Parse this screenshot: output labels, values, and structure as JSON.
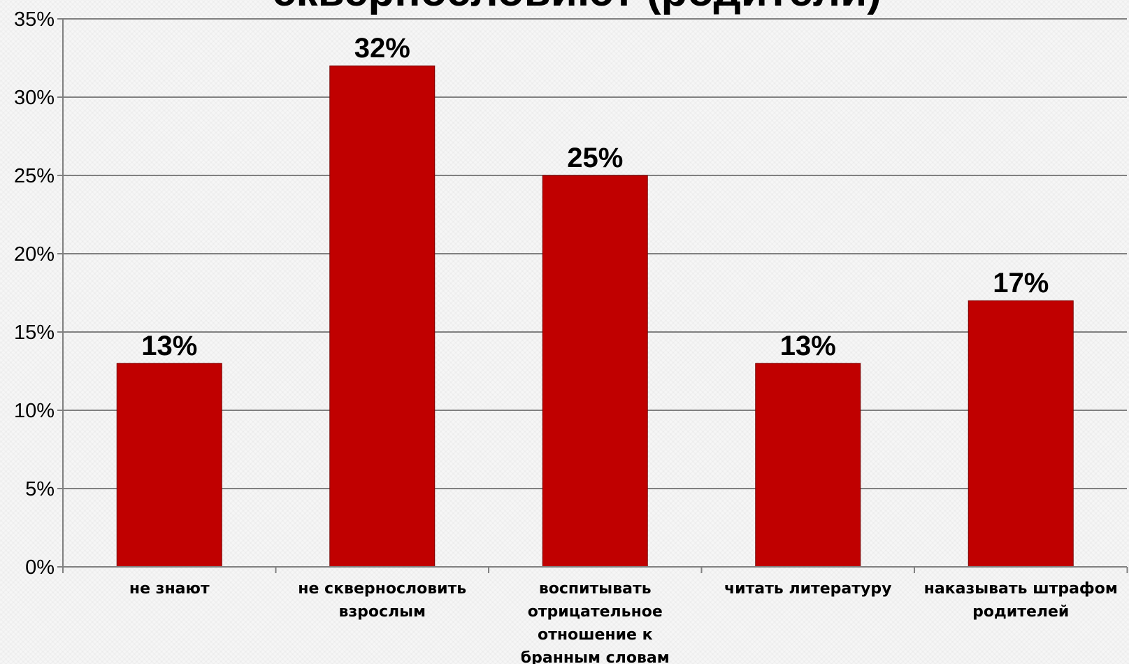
{
  "chart_data": {
    "type": "bar",
    "title": "сквернословиют (родители)",
    "categories": [
      [
        "не знают"
      ],
      [
        "не сквернословить",
        "взрослым"
      ],
      [
        "воспитывать",
        "отрицательное",
        "отношение к",
        "бранным словам"
      ],
      [
        "читать литературу"
      ],
      [
        "наказывать штрафом",
        "родителей"
      ]
    ],
    "values": [
      13,
      32,
      25,
      13,
      17
    ],
    "data_labels": [
      "13%",
      "32%",
      "25%",
      "13%",
      "17%"
    ],
    "ylim": [
      0,
      35
    ],
    "yticks": [
      "0%",
      "5%",
      "10%",
      "15%",
      "20%",
      "25%",
      "30%",
      "35%"
    ],
    "ytick_values": [
      0,
      5,
      10,
      15,
      20,
      25,
      30,
      35
    ],
    "grid": true,
    "legend": false,
    "bar_color": "#c00000"
  }
}
